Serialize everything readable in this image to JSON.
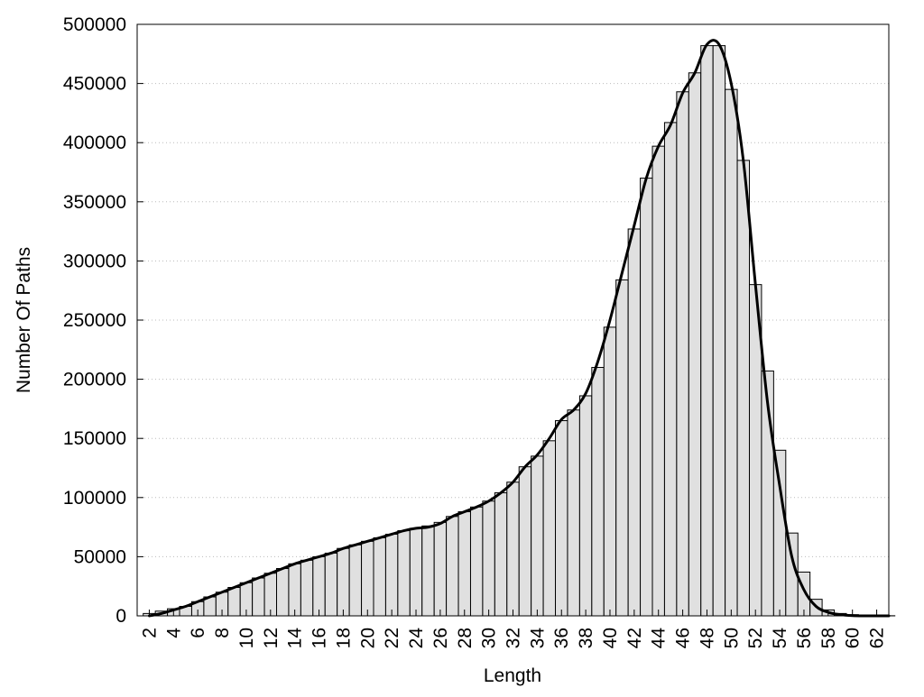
{
  "chart_data": {
    "type": "bar",
    "xlabel": "Length",
    "ylabel": "Number Of Paths",
    "ylim": [
      0,
      500000
    ],
    "xlim": [
      1,
      63
    ],
    "y_ticks": [
      0,
      50000,
      100000,
      150000,
      200000,
      250000,
      300000,
      350000,
      400000,
      450000,
      500000
    ],
    "y_tick_labels": [
      "0",
      "50000",
      "100000",
      "150000",
      "200000",
      "250000",
      "300000",
      "350000",
      "400000",
      "450000",
      "500000"
    ],
    "x_ticks": [
      2,
      4,
      6,
      8,
      10,
      12,
      14,
      16,
      18,
      20,
      22,
      24,
      26,
      28,
      30,
      32,
      34,
      36,
      38,
      40,
      42,
      44,
      46,
      48,
      50,
      52,
      54,
      56,
      58,
      60,
      62
    ],
    "x_tick_labels": [
      "2",
      "4",
      "6",
      "8",
      "10",
      "12",
      "14",
      "16",
      "18",
      "20",
      "22",
      "24",
      "26",
      "28",
      "30",
      "32",
      "34",
      "36",
      "38",
      "40",
      "42",
      "44",
      "46",
      "48",
      "50",
      "52",
      "54",
      "56",
      "58",
      "60",
      "62"
    ],
    "grid": "horizontal-dotted",
    "categories": [
      2,
      3,
      4,
      5,
      6,
      7,
      8,
      9,
      10,
      11,
      12,
      13,
      14,
      15,
      16,
      17,
      18,
      19,
      20,
      21,
      22,
      23,
      24,
      25,
      26,
      27,
      28,
      29,
      30,
      31,
      32,
      33,
      34,
      35,
      36,
      37,
      38,
      39,
      40,
      41,
      42,
      43,
      44,
      45,
      46,
      47,
      48,
      49,
      50,
      51,
      52,
      53,
      54,
      55,
      56,
      57,
      58,
      59,
      60,
      61,
      62,
      63
    ],
    "values": [
      2000,
      4000,
      6000,
      8000,
      12000,
      16000,
      20000,
      24000,
      28000,
      32000,
      36000,
      40000,
      44000,
      47000,
      50000,
      53000,
      57000,
      60000,
      63000,
      66000,
      69000,
      72000,
      74000,
      76000,
      79000,
      84000,
      88000,
      92000,
      97000,
      104000,
      113000,
      126000,
      135000,
      148000,
      165000,
      174000,
      186000,
      210000,
      244000,
      284000,
      327000,
      370000,
      397000,
      417000,
      443000,
      459000,
      482000,
      482000,
      445000,
      385000,
      280000,
      207000,
      140000,
      70000,
      37000,
      14000,
      5000,
      2000,
      1000,
      500,
      200,
      100
    ],
    "series": [
      {
        "type": "line",
        "x": [
          2,
          3,
          4,
          5,
          6,
          7,
          8,
          9,
          10,
          11,
          12,
          13,
          14,
          15,
          16,
          17,
          18,
          19,
          20,
          21,
          22,
          23,
          24,
          25,
          26,
          27,
          28,
          29,
          30,
          31,
          32,
          33,
          34,
          35,
          36,
          37,
          38,
          39,
          40,
          41,
          42,
          43,
          44,
          45,
          46,
          47,
          48,
          49,
          50,
          51,
          52,
          53,
          54,
          55,
          56,
          57,
          58,
          59,
          60,
          61,
          62,
          63
        ],
        "values": [
          0,
          2000,
          5000,
          8000,
          12000,
          16000,
          20000,
          24000,
          28000,
          32000,
          36000,
          40000,
          44000,
          47000,
          50000,
          53000,
          57000,
          60000,
          63000,
          66000,
          69000,
          72000,
          74000,
          75000,
          78000,
          84000,
          88000,
          92000,
          97000,
          104000,
          113000,
          126000,
          136000,
          150000,
          166000,
          174000,
          188000,
          215000,
          250000,
          290000,
          330000,
          370000,
          397000,
          415000,
          442000,
          459000,
          483000,
          483000,
          450000,
          385000,
          280000,
          180000,
          110000,
          50000,
          22000,
          8000,
          3000,
          1000,
          200,
          0,
          0,
          0
        ]
      }
    ],
    "colors": {
      "bar_fill": "#e0e0e0",
      "bar_stroke": "#000000",
      "line": "#000000",
      "grid": "#bbbbbb"
    }
  }
}
